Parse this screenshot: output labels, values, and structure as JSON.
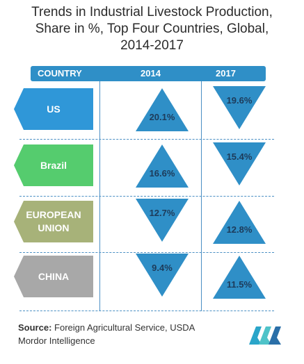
{
  "title_lines": [
    "Trends in Industrial Livestock Production,",
    "Share in %, Top Four Countries, Global,",
    "2014-2017"
  ],
  "header": {
    "country": "COUNTRY",
    "col1": "2014",
    "col2": "2017"
  },
  "rows": [
    {
      "country": "US",
      "color": "#2f97d8",
      "v2014": "20.1%",
      "dir2014": "up",
      "v2017": "19.6%",
      "dir2017": "down"
    },
    {
      "country": "Brazil",
      "color": "#55cc6e",
      "v2014": "16.6%",
      "dir2014": "up",
      "v2017": "15.4%",
      "dir2017": "down"
    },
    {
      "country_lines": [
        "EUROPEAN",
        "UNION"
      ],
      "color": "#a7b279",
      "v2014": "12.7%",
      "dir2014": "down",
      "v2017": "12.8%",
      "dir2017": "up"
    },
    {
      "country": "CHINA",
      "color": "#a8a8a8",
      "v2014": "9.4%",
      "dir2014": "down",
      "v2017": "11.5%",
      "dir2017": "up"
    }
  ],
  "colors": {
    "accent": "#2f8fc7",
    "triangle": "#2f8fc7"
  },
  "source_label": "Source:",
  "source_text": "Foreign Agricultural Service, USDA",
  "publisher": "Mordor Intelligence",
  "chart_data": {
    "type": "table",
    "title": "Trends in Industrial Livestock Production, Share in %, Top Four Countries, Global, 2014-2017",
    "columns": [
      "COUNTRY",
      "2014",
      "2017"
    ],
    "categories": [
      "US",
      "Brazil",
      "EUROPEAN UNION",
      "CHINA"
    ],
    "series": [
      {
        "name": "2014",
        "values": [
          20.1,
          16.6,
          12.7,
          9.4
        ]
      },
      {
        "name": "2017",
        "values": [
          19.6,
          15.4,
          12.8,
          11.5
        ]
      }
    ]
  }
}
